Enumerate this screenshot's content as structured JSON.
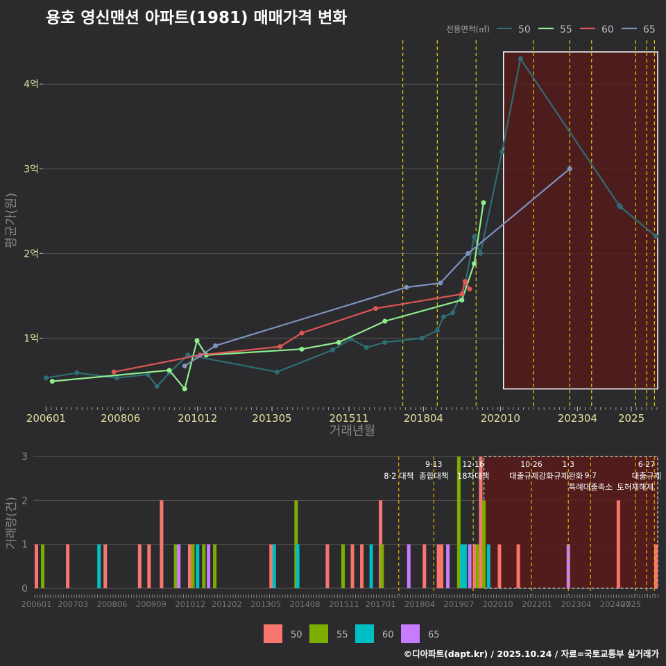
{
  "title": "용호 영신맨션 아파트(1981) 매매가격 변화",
  "footer": "©디아파트(dapt.kr) / 2025.10.24 / 자료=국토교통부 실거래가",
  "colors": {
    "bg": "#2b2b2d",
    "grid": "#555555",
    "s50_line": "#2e6e73",
    "s55_line": "#90ee90",
    "s60_line": "#e05555",
    "s65_line": "#7f93c0",
    "b50": "#f8766d",
    "b55": "#7cae00",
    "b60": "#00bfc4",
    "b65": "#c77cff",
    "policy": "#e8d000",
    "highlight": "#5a1a1a"
  },
  "chart_data": [
    {
      "type": "line",
      "title": "용호 영신맨션 아파트(1981) 매매가격 변화",
      "xlabel": "거래년월",
      "ylabel": "평균가(원)",
      "legend_title": "전용면적(㎡)",
      "legend_position": "top-right",
      "x_ticks": [
        "200601",
        "200806",
        "201012",
        "201305",
        "201511",
        "201804",
        "202010",
        "202304",
        "2025"
      ],
      "y_ticks": [
        {
          "value": 1,
          "label": "1억"
        },
        {
          "value": 2,
          "label": "2억"
        },
        {
          "value": 3,
          "label": "3억"
        },
        {
          "value": 4,
          "label": "4억"
        }
      ],
      "ylim": [
        0.2,
        4.6
      ],
      "xlim": [
        2005.9,
        2025.9
      ],
      "series": [
        {
          "name": "50",
          "color_key": "s50_line",
          "points": [
            [
              2006.0,
              0.53
            ],
            [
              2007.0,
              0.59
            ],
            [
              2008.3,
              0.53
            ],
            [
              2009.3,
              0.57
            ],
            [
              2009.6,
              0.43
            ],
            [
              2010.0,
              0.59
            ],
            [
              2010.6,
              0.8
            ],
            [
              2010.9,
              0.78
            ],
            [
              2013.5,
              0.6
            ],
            [
              2015.3,
              0.86
            ],
            [
              2015.9,
              0.99
            ],
            [
              2016.4,
              0.89
            ],
            [
              2017.0,
              0.95
            ],
            [
              2018.2,
              1.0
            ],
            [
              2018.7,
              1.09
            ],
            [
              2018.9,
              1.25
            ],
            [
              2019.2,
              1.3
            ],
            [
              2019.6,
              1.63
            ],
            [
              2019.9,
              2.2
            ],
            [
              2020.1,
              2.0
            ],
            [
              2020.8,
              3.2
            ],
            [
              2021.4,
              4.3
            ],
            [
              2024.6,
              2.57
            ],
            [
              2024.65,
              2.55
            ],
            [
              2025.8,
              2.2
            ]
          ]
        },
        {
          "name": "55",
          "color_key": "s55_line",
          "points": [
            [
              2006.2,
              0.49
            ],
            [
              2010.0,
              0.62
            ],
            [
              2010.5,
              0.4
            ],
            [
              2010.9,
              0.97
            ],
            [
              2011.2,
              0.8
            ],
            [
              2014.3,
              0.87
            ],
            [
              2015.5,
              0.95
            ],
            [
              2017.0,
              1.2
            ],
            [
              2019.5,
              1.45
            ],
            [
              2019.9,
              1.88
            ],
            [
              2020.2,
              2.6
            ]
          ]
        },
        {
          "name": "60",
          "color_key": "s60_line",
          "points": [
            [
              2008.2,
              0.6
            ],
            [
              2011.0,
              0.8
            ],
            [
              2013.6,
              0.9
            ],
            [
              2014.3,
              1.06
            ],
            [
              2016.7,
              1.35
            ],
            [
              2019.5,
              1.52
            ],
            [
              2019.6,
              1.67
            ],
            [
              2019.75,
              1.58
            ]
          ]
        },
        {
          "name": "65",
          "color_key": "s65_line",
          "points": [
            [
              2010.5,
              0.67
            ],
            [
              2011.5,
              0.91
            ],
            [
              2017.7,
              1.6
            ],
            [
              2018.8,
              1.65
            ],
            [
              2019.7,
              2.0
            ],
            [
              2023.0,
              3.0
            ]
          ]
        }
      ],
      "policy_lines": [
        2017.58,
        2018.7,
        2019.96,
        2021.82,
        2023.0,
        2023.71,
        2025.14,
        2025.5,
        2025.75
      ]
    },
    {
      "type": "bar",
      "ylabel": "거래량(건)",
      "ylim": [
        0,
        3
      ],
      "y_ticks": [
        0,
        1,
        2,
        3
      ],
      "x_ticks": [
        "200601",
        "200703",
        "200806",
        "200909",
        "201012",
        "201202",
        "201305",
        "201408",
        "201511",
        "201701",
        "201804",
        "201907",
        "202010",
        "202201",
        "202304",
        "202407",
        "2025"
      ],
      "legend": [
        "50",
        "55",
        "60",
        "65"
      ],
      "bars": [
        {
          "x": 2006.0,
          "series": "50",
          "value": 1
        },
        {
          "x": 2006.2,
          "series": "55",
          "value": 1
        },
        {
          "x": 2007.0,
          "series": "50",
          "value": 1
        },
        {
          "x": 2008.0,
          "series": "60",
          "value": 1
        },
        {
          "x": 2008.2,
          "series": "50",
          "value": 1
        },
        {
          "x": 2009.3,
          "series": "50",
          "value": 1
        },
        {
          "x": 2009.6,
          "series": "50",
          "value": 1
        },
        {
          "x": 2010.0,
          "series": "50",
          "value": 2
        },
        {
          "x": 2010.45,
          "series": "55",
          "value": 1
        },
        {
          "x": 2010.55,
          "series": "65",
          "value": 1
        },
        {
          "x": 2010.9,
          "series": "50",
          "value": 1
        },
        {
          "x": 2011.0,
          "series": "55",
          "value": 1
        },
        {
          "x": 2011.15,
          "series": "60",
          "value": 1
        },
        {
          "x": 2011.35,
          "series": "55",
          "value": 1
        },
        {
          "x": 2011.5,
          "series": "65",
          "value": 1
        },
        {
          "x": 2011.7,
          "series": "55",
          "value": 1
        },
        {
          "x": 2013.5,
          "series": "50",
          "value": 1
        },
        {
          "x": 2013.6,
          "series": "60",
          "value": 1
        },
        {
          "x": 2014.3,
          "series": "55",
          "value": 2
        },
        {
          "x": 2014.35,
          "series": "60",
          "value": 1
        },
        {
          "x": 2015.3,
          "series": "50",
          "value": 1
        },
        {
          "x": 2015.8,
          "series": "55",
          "value": 1
        },
        {
          "x": 2016.1,
          "series": "50",
          "value": 1
        },
        {
          "x": 2016.4,
          "series": "50",
          "value": 1
        },
        {
          "x": 2016.7,
          "series": "60",
          "value": 1
        },
        {
          "x": 2017.0,
          "series": "50",
          "value": 2
        },
        {
          "x": 2017.05,
          "series": "55",
          "value": 1
        },
        {
          "x": 2017.9,
          "series": "65",
          "value": 1
        },
        {
          "x": 2018.4,
          "series": "50",
          "value": 1
        },
        {
          "x": 2018.85,
          "series": "50",
          "value": 1
        },
        {
          "x": 2018.95,
          "series": "50",
          "value": 1
        },
        {
          "x": 2019.15,
          "series": "65",
          "value": 1
        },
        {
          "x": 2019.5,
          "series": "55",
          "value": 3
        },
        {
          "x": 2019.6,
          "series": "60",
          "value": 1
        },
        {
          "x": 2019.7,
          "series": "60",
          "value": 1
        },
        {
          "x": 2019.85,
          "series": "65",
          "value": 1
        },
        {
          "x": 2020.0,
          "series": "50",
          "value": 1
        },
        {
          "x": 2020.1,
          "series": "55",
          "value": 1
        },
        {
          "x": 2020.2,
          "series": "50",
          "value": 3
        },
        {
          "x": 2020.3,
          "series": "55",
          "value": 2
        },
        {
          "x": 2020.45,
          "series": "60",
          "value": 1
        },
        {
          "x": 2020.8,
          "series": "50",
          "value": 1
        },
        {
          "x": 2021.4,
          "series": "50",
          "value": 1
        },
        {
          "x": 2023.0,
          "series": "65",
          "value": 1
        },
        {
          "x": 2024.6,
          "series": "50",
          "value": 2
        },
        {
          "x": 2025.8,
          "series": "50",
          "value": 1
        }
      ],
      "policy_events": [
        {
          "x": 2017.58,
          "date": "",
          "label": "8·2 대책"
        },
        {
          "x": 2018.7,
          "date": "9·13",
          "label": "종합대책"
        },
        {
          "x": 2019.96,
          "date": "12·16",
          "label": "18차대책"
        },
        {
          "x": 2021.82,
          "date": "10·26",
          "label": "대출규제강화"
        },
        {
          "x": 2023.0,
          "date": "1·3",
          "label": "규제완화"
        },
        {
          "x": 2023.71,
          "date": "9·7",
          "label": "특례대출축소"
        },
        {
          "x": 2025.14,
          "date": "",
          "label": "토허제해제"
        },
        {
          "x": 2025.5,
          "date": "6·27",
          "label": "대출규제"
        },
        {
          "x": 2025.75,
          "date": "",
          "label": ""
        }
      ]
    }
  ]
}
